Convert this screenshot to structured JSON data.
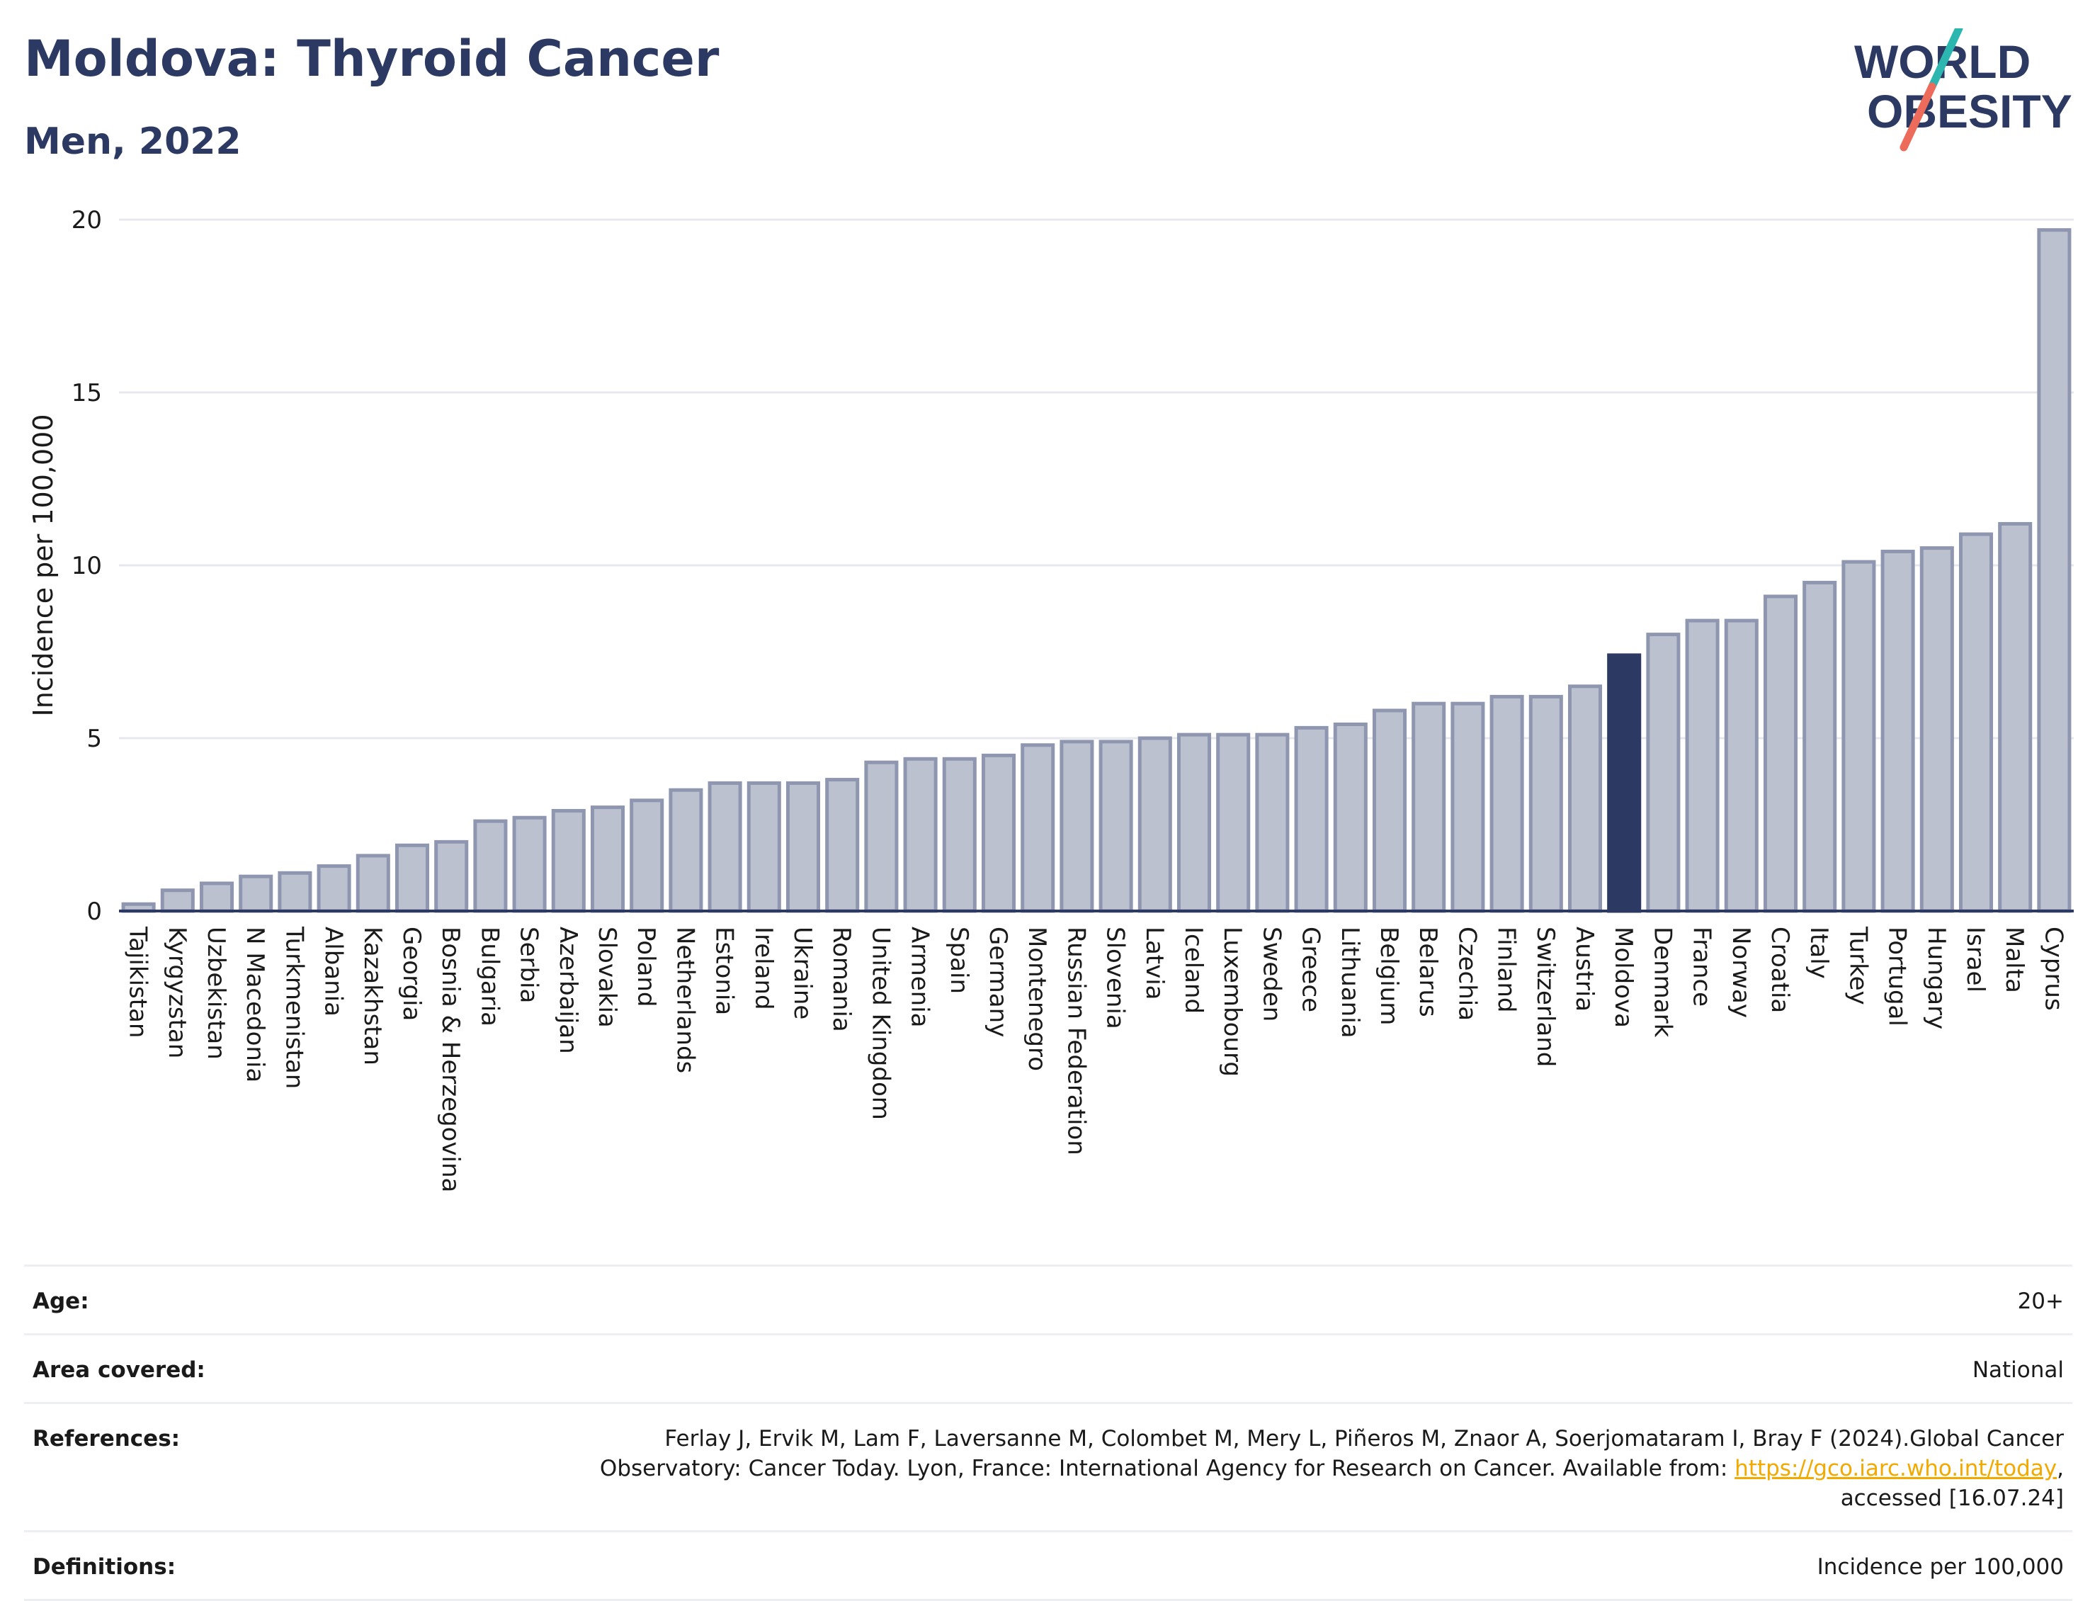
{
  "header": {
    "title": "Moldova: Thyroid Cancer",
    "subtitle": "Men, 2022",
    "logo_line1": "WORLD",
    "logo_line2": "OBESITY"
  },
  "colors": {
    "bar_default": "#bcc1d0",
    "bar_default_stroke": "#8f97b0",
    "bar_highlight": "#2c3a63",
    "title": "#2c3a63",
    "link": "#f2a900"
  },
  "chart_data": {
    "type": "bar",
    "title": "Moldova: Thyroid Cancer",
    "subtitle": "Men, 2022",
    "xlabel": "",
    "ylabel": "Incidence per 100,000",
    "ylim": [
      0,
      20
    ],
    "yticks": [
      0,
      5,
      10,
      15,
      20
    ],
    "grid": true,
    "highlight": "Moldova",
    "categories": [
      "Tajikistan",
      "Kyrgyzstan",
      "Uzbekistan",
      "N Macedonia",
      "Turkmenistan",
      "Albania",
      "Kazakhstan",
      "Georgia",
      "Bosnia & Herzegovina",
      "Bulgaria",
      "Serbia",
      "Azerbaijan",
      "Slovakia",
      "Poland",
      "Netherlands",
      "Estonia",
      "Ireland",
      "Ukraine",
      "Romania",
      "United Kingdom",
      "Armenia",
      "Spain",
      "Germany",
      "Montenegro",
      "Russian Federation",
      "Slovenia",
      "Latvia",
      "Iceland",
      "Luxembourg",
      "Sweden",
      "Greece",
      "Lithuania",
      "Belgium",
      "Belarus",
      "Czechia",
      "Finland",
      "Switzerland",
      "Austria",
      "Moldova",
      "Denmark",
      "France",
      "Norway",
      "Croatia",
      "Italy",
      "Turkey",
      "Portugal",
      "Hungary",
      "Israel",
      "Malta",
      "Cyprus"
    ],
    "values": [
      0.2,
      0.6,
      0.8,
      1.0,
      1.1,
      1.3,
      1.6,
      1.9,
      2.0,
      2.6,
      2.7,
      2.9,
      3.0,
      3.2,
      3.5,
      3.7,
      3.7,
      3.7,
      3.8,
      4.3,
      4.4,
      4.4,
      4.5,
      4.8,
      4.9,
      4.9,
      5.0,
      5.1,
      5.1,
      5.1,
      5.3,
      5.4,
      5.8,
      6.0,
      6.0,
      6.2,
      6.2,
      6.5,
      7.4,
      8.0,
      8.4,
      8.4,
      9.1,
      9.5,
      10.1,
      10.4,
      10.5,
      10.9,
      11.2,
      19.7
    ]
  },
  "meta": {
    "age_label": "Age:",
    "age_value": "20+",
    "area_label": "Area covered:",
    "area_value": "National",
    "references_label": "References:",
    "references_line1": "Ferlay J, Ervik M, Lam F, Laversanne M, Colombet M, Mery L, Piñeros M, Znaor A, Soerjomataram I, Bray F (2024).Global Cancer",
    "references_line2_prefix": "Observatory: Cancer Today. Lyon, France: International Agency for Research on Cancer. Available from: ",
    "references_link": "https://gco.iarc.who.int/today",
    "references_line2_suffix": ",",
    "references_line3": "accessed [16.07.24]",
    "definitions_label": "Definitions:",
    "definitions_value": "Incidence per 100,000"
  }
}
